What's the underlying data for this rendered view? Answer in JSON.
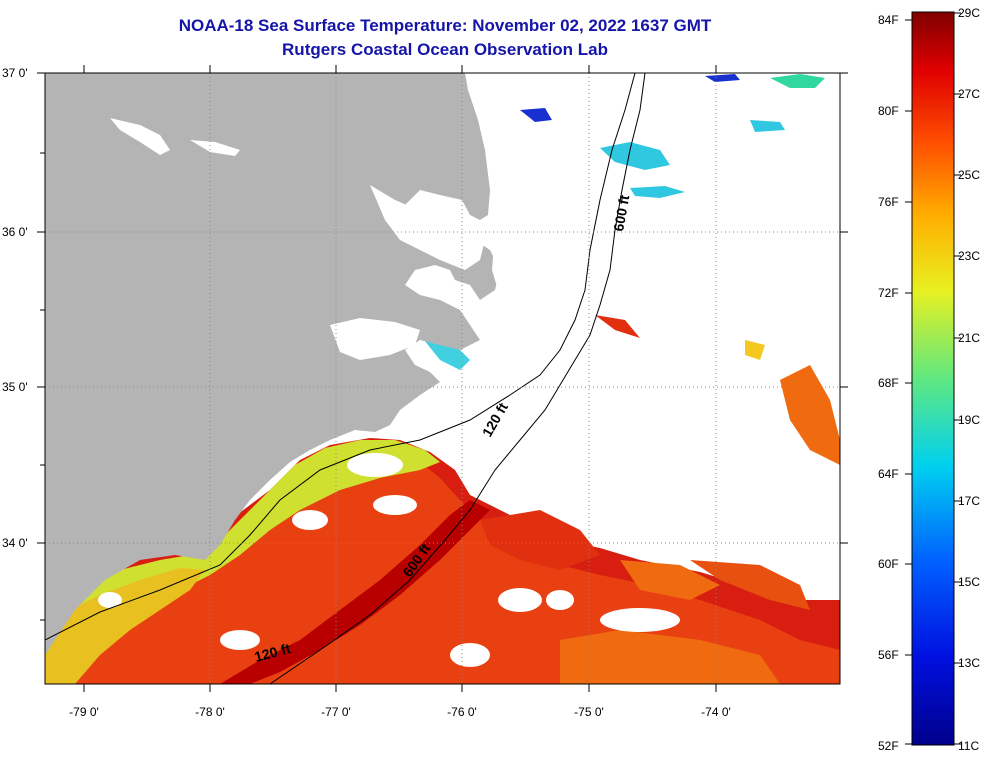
{
  "title": {
    "line1": "NOAA-18 Sea Surface Temperature:  November 02, 2022 1637 GMT",
    "line2": "Rutgers Coastal Ocean Observation Lab"
  },
  "lat_labels": [
    "37 0'",
    "36 0'",
    "35 0'",
    "34 0'"
  ],
  "lon_labels": [
    "-79 0'",
    "-78 0'",
    "-77 0'",
    "-76 0'",
    "-75 0'",
    "-74 0'"
  ],
  "contours": {
    "c600_north": "600 ft",
    "c120": "120 ft",
    "c600_south": "600 ft",
    "c120_south": "120 ft"
  },
  "colorbar": {
    "f_labels": [
      "84F",
      "80F",
      "76F",
      "72F",
      "68F",
      "64F",
      "60F",
      "56F",
      "52F"
    ],
    "c_labels": [
      "29C",
      "27C",
      "25C",
      "23C",
      "21C",
      "19C",
      "17C",
      "15C",
      "13C",
      "11C"
    ]
  },
  "colors": {
    "land": "#b4b4b4",
    "title": "#1515a8",
    "warm": "#d81e10",
    "hot": "#b80000",
    "orange": "#f06a10",
    "yellow": "#d8e020",
    "cyan": "#30c8e0",
    "blue": "#1830d0"
  }
}
